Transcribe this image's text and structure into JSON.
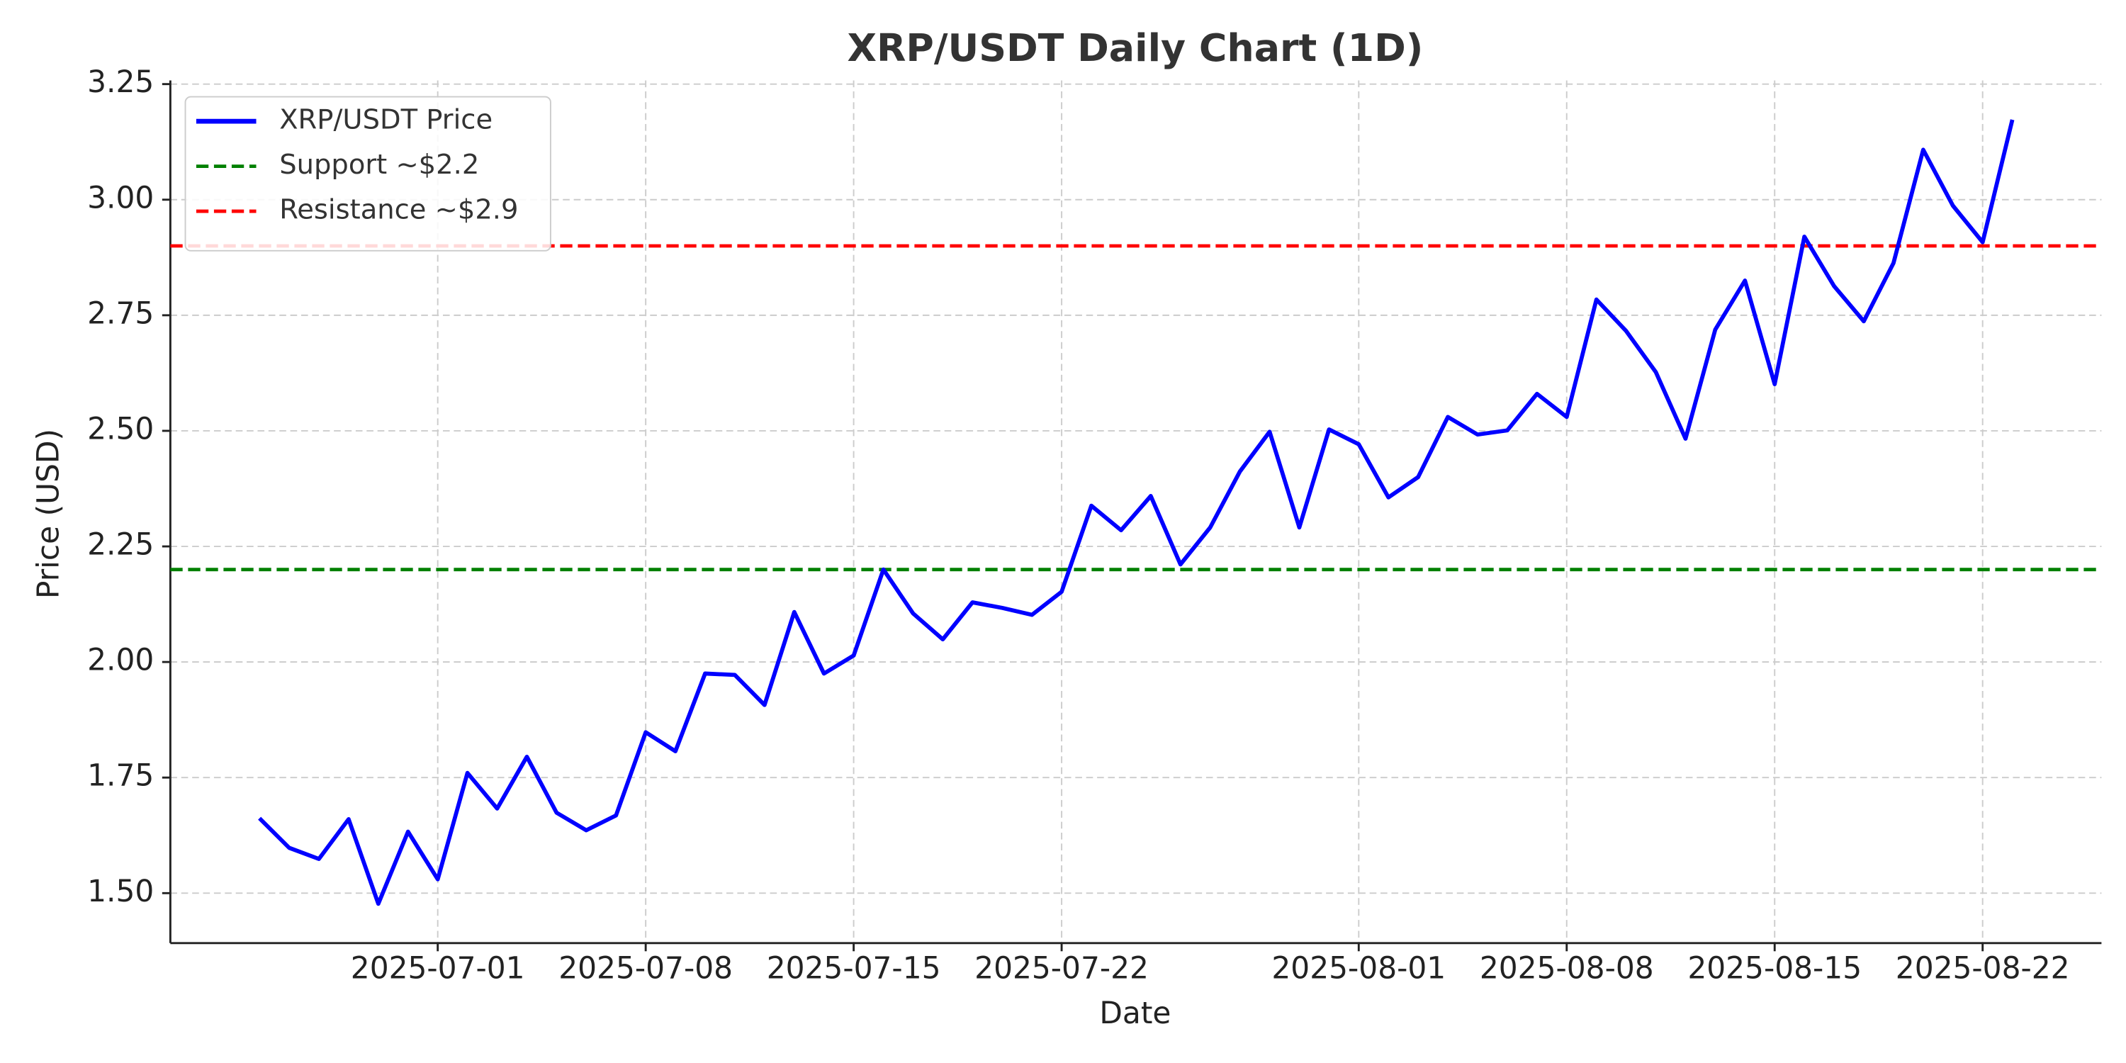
{
  "chart_data": {
    "type": "line",
    "title": "XRP/USDT Daily Chart (1D)",
    "xlabel": "Date",
    "ylabel": "Price (USD)",
    "x": [
      "2025-06-25",
      "2025-06-26",
      "2025-06-27",
      "2025-06-28",
      "2025-06-29",
      "2025-06-30",
      "2025-07-01",
      "2025-07-02",
      "2025-07-03",
      "2025-07-04",
      "2025-07-05",
      "2025-07-06",
      "2025-07-07",
      "2025-07-08",
      "2025-07-09",
      "2025-07-10",
      "2025-07-11",
      "2025-07-12",
      "2025-07-13",
      "2025-07-14",
      "2025-07-15",
      "2025-07-16",
      "2025-07-17",
      "2025-07-18",
      "2025-07-19",
      "2025-07-20",
      "2025-07-21",
      "2025-07-22",
      "2025-07-23",
      "2025-07-24",
      "2025-07-25",
      "2025-07-26",
      "2025-07-27",
      "2025-07-28",
      "2025-07-29",
      "2025-07-30",
      "2025-07-31",
      "2025-08-01",
      "2025-08-02",
      "2025-08-03",
      "2025-08-04",
      "2025-08-05",
      "2025-08-06",
      "2025-08-07",
      "2025-08-08",
      "2025-08-09",
      "2025-08-10",
      "2025-08-11",
      "2025-08-12",
      "2025-08-13",
      "2025-08-14",
      "2025-08-15",
      "2025-08-16",
      "2025-08-17",
      "2025-08-18",
      "2025-08-19",
      "2025-08-20",
      "2025-08-21",
      "2025-08-22",
      "2025-08-23"
    ],
    "series": [
      {
        "name": "XRP/USDT Price",
        "color": "#0000ff",
        "values": [
          1.662,
          1.598,
          1.574,
          1.66,
          1.477,
          1.633,
          1.53,
          1.76,
          1.683,
          1.795,
          1.674,
          1.636,
          1.668,
          1.848,
          1.807,
          1.975,
          1.972,
          1.907,
          2.108,
          1.975,
          2.014,
          2.2,
          2.105,
          2.049,
          2.129,
          2.117,
          2.102,
          2.152,
          2.338,
          2.285,
          2.359,
          2.211,
          2.291,
          2.412,
          2.498,
          2.291,
          2.503,
          2.471,
          2.356,
          2.4,
          2.53,
          2.492,
          2.501,
          2.58,
          2.53,
          2.784,
          2.716,
          2.627,
          2.483,
          2.719,
          2.825,
          2.601,
          2.92,
          2.813,
          2.737,
          2.863,
          3.108,
          2.987,
          2.908,
          3.173
        ]
      }
    ],
    "hlines": [
      {
        "name": "Support ~$2.2",
        "color": "#008000",
        "value": 2.2
      },
      {
        "name": "Resistance ~$2.9",
        "color": "#ff0000",
        "value": 2.9
      }
    ],
    "xlim": [
      "2025-06-22",
      "2025-08-26"
    ],
    "xticks": [
      "2025-07-01",
      "2025-07-08",
      "2025-07-15",
      "2025-07-22",
      "2025-08-01",
      "2025-08-08",
      "2025-08-15",
      "2025-08-22"
    ],
    "ylim": [
      1.392,
      3.258
    ],
    "yticks": [
      {
        "value": 1.5,
        "label": "1.50"
      },
      {
        "value": 1.75,
        "label": "1.75"
      },
      {
        "value": 2.0,
        "label": "2.00"
      },
      {
        "value": 2.25,
        "label": "2.25"
      },
      {
        "value": 2.5,
        "label": "2.50"
      },
      {
        "value": 2.75,
        "label": "2.75"
      },
      {
        "value": 3.0,
        "label": "3.00"
      },
      {
        "value": 3.25,
        "label": "3.25"
      }
    ],
    "grid": true,
    "legend": "upper left"
  }
}
